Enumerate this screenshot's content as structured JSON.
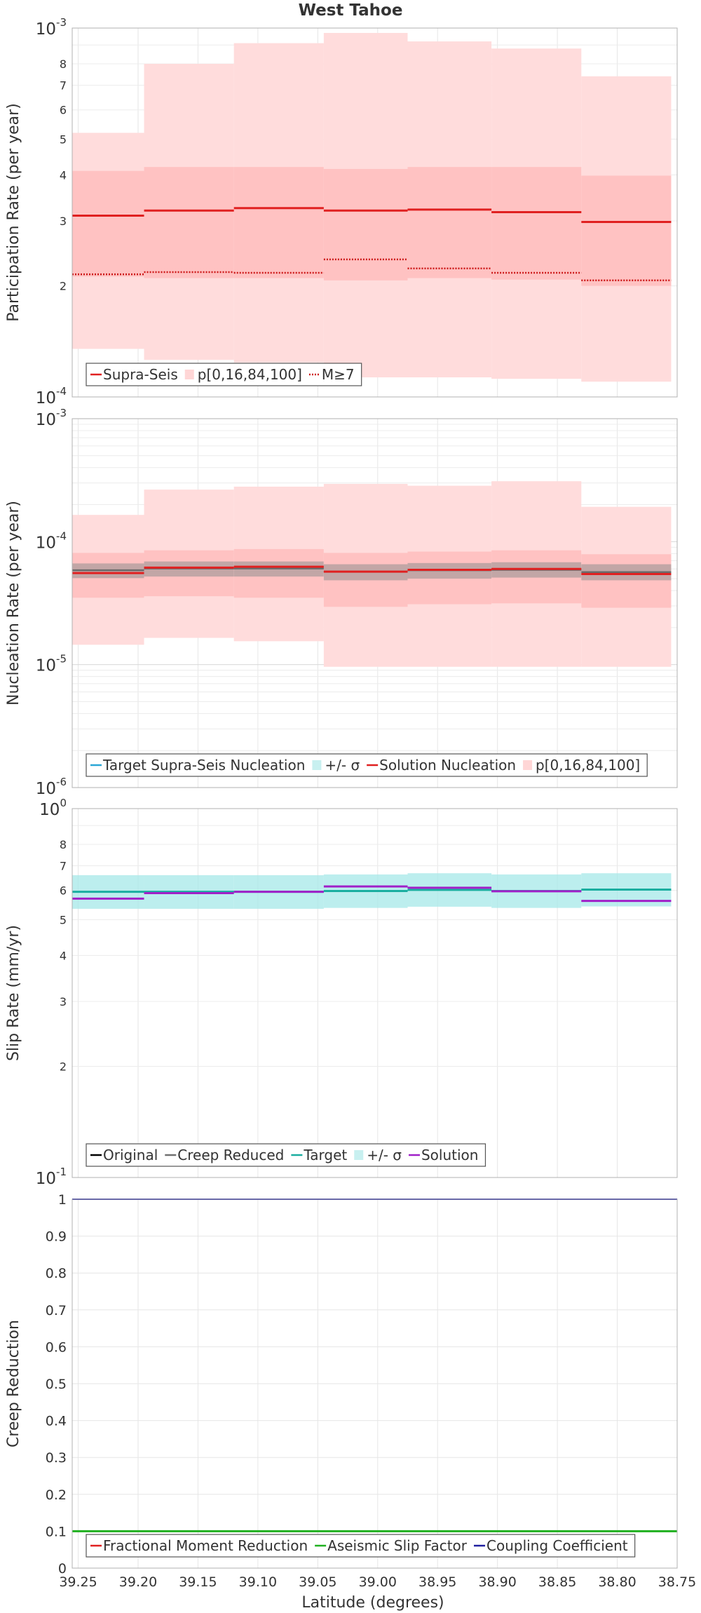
{
  "title": "West Tahoe",
  "xlabel": "Latitude (degrees)",
  "x_ticks": [
    "39.25",
    "39.20",
    "39.15",
    "39.10",
    "39.05",
    "39.00",
    "38.95",
    "38.90",
    "38.85",
    "38.80",
    "38.75"
  ],
  "chart_data": [
    {
      "type": "line",
      "ylabel": "Participation Rate (per year)",
      "yscale": "log",
      "ylim": [
        0.0001,
        0.001
      ],
      "y_ticks_major": [
        {
          "value": 0.0001,
          "base": "10",
          "exp": "-4"
        },
        {
          "value": 0.001,
          "base": "10",
          "exp": "-3"
        }
      ],
      "y_ticks_minor": [
        {
          "value": 0.0002,
          "label": "2"
        },
        {
          "value": 0.0003,
          "label": "3"
        },
        {
          "value": 0.0004,
          "label": "4"
        },
        {
          "value": 0.0005,
          "label": "5"
        },
        {
          "value": 0.0006,
          "label": "6"
        },
        {
          "value": 0.0007,
          "label": "7"
        },
        {
          "value": 0.0008,
          "label": "8"
        }
      ],
      "legend": {
        "position": "bottom-left",
        "entries": [
          {
            "label": "Supra-Seis",
            "style": "solid",
            "color": "#e02020"
          },
          {
            "label": "p[0,16,84,100]",
            "style": "band",
            "color": "#ffd6d6"
          },
          {
            "label": "M≥7",
            "style": "dotted",
            "color": "#cc1818"
          }
        ]
      },
      "bins": [
        {
          "lat_from": 39.255,
          "lat_to": 39.195,
          "supra_seis": 0.00031,
          "m7": 0.000215,
          "p0": 0.000135,
          "p16": 0.000212,
          "p84": 0.00041,
          "p100": 0.00052
        },
        {
          "lat_from": 39.195,
          "lat_to": 39.12,
          "supra_seis": 0.00032,
          "m7": 0.000218,
          "p0": 0.000126,
          "p16": 0.00021,
          "p84": 0.00042,
          "p100": 0.0008
        },
        {
          "lat_from": 39.12,
          "lat_to": 39.045,
          "supra_seis": 0.000325,
          "m7": 0.000217,
          "p0": 0.000124,
          "p16": 0.00021,
          "p84": 0.00042,
          "p100": 0.00091
        },
        {
          "lat_from": 39.045,
          "lat_to": 38.975,
          "supra_seis": 0.00032,
          "m7": 0.000236,
          "p0": 0.000113,
          "p16": 0.000207,
          "p84": 0.000415,
          "p100": 0.00097
        },
        {
          "lat_from": 38.975,
          "lat_to": 38.905,
          "supra_seis": 0.000322,
          "m7": 0.000223,
          "p0": 0.000113,
          "p16": 0.00021,
          "p84": 0.00042,
          "p100": 0.00092
        },
        {
          "lat_from": 38.905,
          "lat_to": 38.83,
          "supra_seis": 0.000317,
          "m7": 0.000217,
          "p0": 0.000112,
          "p16": 0.000208,
          "p84": 0.00042,
          "p100": 0.00088
        },
        {
          "lat_from": 38.83,
          "lat_to": 38.755,
          "supra_seis": 0.000298,
          "m7": 0.000207,
          "p0": 0.00011,
          "p16": 0.0002,
          "p84": 0.000398,
          "p100": 0.00074
        }
      ]
    },
    {
      "type": "line",
      "ylabel": "Nucleation Rate (per year)",
      "yscale": "log",
      "ylim": [
        1e-06,
        0.001
      ],
      "y_ticks_major": [
        {
          "value": 1e-06,
          "base": "10",
          "exp": "-6"
        },
        {
          "value": 1e-05,
          "base": "10",
          "exp": "-5"
        },
        {
          "value": 0.0001,
          "base": "10",
          "exp": "-4"
        },
        {
          "value": 0.001,
          "base": "10",
          "exp": "-3"
        }
      ],
      "legend": {
        "position": "bottom-left",
        "entries": [
          {
            "label": "Target Supra-Seis Nucleation",
            "style": "solid",
            "color": "#2aa7d6"
          },
          {
            "label": "+/- σ",
            "style": "band",
            "color": "#c8f0f0"
          },
          {
            "label": "Solution Nucleation",
            "style": "solid",
            "color": "#e02020"
          },
          {
            "label": "p[0,16,84,100]",
            "style": "band",
            "color": "#ffd6d6"
          }
        ]
      },
      "bins": [
        {
          "lat_from": 39.255,
          "lat_to": 39.195,
          "target": 5.85e-05,
          "sigma_lo": 5.05e-05,
          "sigma_hi": 6.65e-05,
          "solution": 5.55e-05,
          "p0": 1.45e-05,
          "p16": 3.5e-05,
          "p84": 8.1e-05,
          "p100": 0.000165
        },
        {
          "lat_from": 39.195,
          "lat_to": 39.12,
          "target": 6.05e-05,
          "sigma_lo": 5.2e-05,
          "sigma_hi": 6.9e-05,
          "solution": 6.15e-05,
          "p0": 1.65e-05,
          "p16": 3.6e-05,
          "p84": 8.5e-05,
          "p100": 0.000265
        },
        {
          "lat_from": 39.12,
          "lat_to": 39.045,
          "target": 6.05e-05,
          "sigma_lo": 5.2e-05,
          "sigma_hi": 6.9e-05,
          "solution": 6.25e-05,
          "p0": 1.55e-05,
          "p16": 3.5e-05,
          "p84": 8.7e-05,
          "p100": 0.00028
        },
        {
          "lat_from": 39.045,
          "lat_to": 38.975,
          "target": 5.7e-05,
          "sigma_lo": 4.85e-05,
          "sigma_hi": 6.55e-05,
          "solution": 5.7e-05,
          "p0": 9.6e-06,
          "p16": 2.95e-05,
          "p84": 8.1e-05,
          "p100": 0.000295
        },
        {
          "lat_from": 38.975,
          "lat_to": 38.905,
          "target": 5.85e-05,
          "sigma_lo": 5e-05,
          "sigma_hi": 6.7e-05,
          "solution": 5.9e-05,
          "p0": 9.6e-06,
          "p16": 3.1e-05,
          "p84": 8.3e-05,
          "p100": 0.000285
        },
        {
          "lat_from": 38.905,
          "lat_to": 38.83,
          "target": 5.9e-05,
          "sigma_lo": 5.1e-05,
          "sigma_hi": 6.8e-05,
          "solution": 6e-05,
          "p0": 9.6e-06,
          "p16": 3.15e-05,
          "p84": 8.5e-05,
          "p100": 0.00031
        },
        {
          "lat_from": 38.83,
          "lat_to": 38.755,
          "target": 5.65e-05,
          "sigma_lo": 4.85e-05,
          "sigma_hi": 6.55e-05,
          "solution": 5.45e-05,
          "p0": 9.6e-06,
          "p16": 2.9e-05,
          "p84": 7.9e-05,
          "p100": 0.000192
        }
      ]
    },
    {
      "type": "line",
      "ylabel": "Slip Rate (mm/yr)",
      "yscale": "log",
      "ylim": [
        0.1,
        1
      ],
      "y_ticks_major": [
        {
          "value": 0.1,
          "base": "10",
          "exp": "-1"
        },
        {
          "value": 1,
          "base": "10",
          "exp": "0"
        }
      ],
      "y_ticks_minor": [
        {
          "value": 0.2,
          "label": "2"
        },
        {
          "value": 0.3,
          "label": "3"
        },
        {
          "value": 0.4,
          "label": "4"
        },
        {
          "value": 0.5,
          "label": "5"
        },
        {
          "value": 0.6,
          "label": "6"
        },
        {
          "value": 0.7,
          "label": "7"
        },
        {
          "value": 0.8,
          "label": "8"
        }
      ],
      "legend": {
        "position": "bottom-left",
        "entries": [
          {
            "label": "Original",
            "style": "solid",
            "color": "#000000"
          },
          {
            "label": "Creep Reduced",
            "style": "solid",
            "color": "#707070"
          },
          {
            "label": "Target",
            "style": "solid",
            "color": "#1aaea0"
          },
          {
            "label": "+/- σ",
            "style": "band",
            "color": "#c8f0f0"
          },
          {
            "label": "Solution",
            "style": "solid",
            "color": "#a020c8"
          }
        ]
      },
      "bins": [
        {
          "lat_from": 39.255,
          "lat_to": 39.195,
          "target": 0.595,
          "sigma_lo": 0.535,
          "sigma_hi": 0.66,
          "solution": 0.57
        },
        {
          "lat_from": 39.195,
          "lat_to": 39.12,
          "target": 0.595,
          "sigma_lo": 0.535,
          "sigma_hi": 0.66,
          "solution": 0.59
        },
        {
          "lat_from": 39.12,
          "lat_to": 39.045,
          "target": 0.595,
          "sigma_lo": 0.535,
          "sigma_hi": 0.66,
          "solution": 0.595
        },
        {
          "lat_from": 39.045,
          "lat_to": 38.975,
          "target": 0.598,
          "sigma_lo": 0.538,
          "sigma_hi": 0.663,
          "solution": 0.615
        },
        {
          "lat_from": 38.975,
          "lat_to": 38.905,
          "target": 0.602,
          "sigma_lo": 0.542,
          "sigma_hi": 0.668,
          "solution": 0.61
        },
        {
          "lat_from": 38.905,
          "lat_to": 38.83,
          "target": 0.598,
          "sigma_lo": 0.538,
          "sigma_hi": 0.663,
          "solution": 0.597
        },
        {
          "lat_from": 38.83,
          "lat_to": 38.755,
          "target": 0.603,
          "sigma_lo": 0.543,
          "sigma_hi": 0.668,
          "solution": 0.562
        }
      ]
    },
    {
      "type": "line",
      "ylabel": "Creep Reduction",
      "yscale": "linear",
      "ylim": [
        0,
        1
      ],
      "y_ticks": [
        "0",
        "0.1",
        "0.2",
        "0.3",
        "0.4",
        "0.5",
        "0.6",
        "0.7",
        "0.8",
        "0.9",
        "1"
      ],
      "legend": {
        "position": "bottom-left",
        "entries": [
          {
            "label": "Fractional Moment Reduction",
            "style": "solid",
            "color": "#e02020"
          },
          {
            "label": "Aseismic Slip Factor",
            "style": "solid",
            "color": "#20b020"
          },
          {
            "label": "Coupling Coefficient",
            "style": "solid",
            "color": "#2020a0"
          }
        ]
      },
      "series": [
        {
          "name": "Aseismic Slip Factor",
          "value": 0.1,
          "color": "#20b020"
        },
        {
          "name": "Coupling Coefficient",
          "value": 1.0,
          "color": "#2020a0"
        }
      ]
    }
  ]
}
